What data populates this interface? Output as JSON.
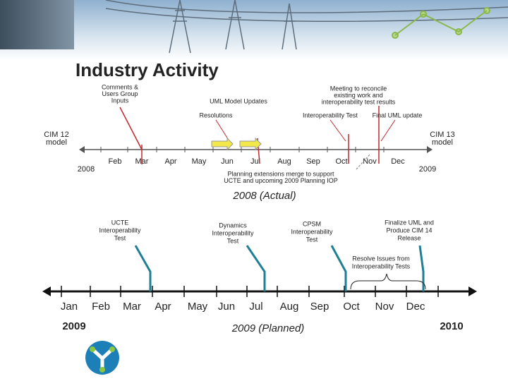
{
  "header": {
    "title": "Industry Activity"
  },
  "timeline_2008": {
    "caption": "2008 (Actual)",
    "start_year": "2008",
    "end_year": "2009",
    "start_model": [
      "CIM 12",
      "model"
    ],
    "end_model": [
      "CIM 13",
      "model"
    ],
    "months": [
      "Feb",
      "Mar",
      "Apr",
      "May",
      "Jun",
      "Jul",
      "Aug",
      "Sep",
      "Oct",
      "Nov",
      "Dec"
    ],
    "annotations": [
      {
        "lines": [
          "Comments &",
          "Users Group",
          "Inputs"
        ]
      },
      {
        "lines": [
          "UML Model Updates"
        ]
      },
      {
        "lines": [
          "Resolutions"
        ]
      },
      {
        "lines": [
          "Meeting to reconcile",
          "existing work and",
          "interoperability test results"
        ]
      },
      {
        "lines": [
          "Interoperability Test"
        ]
      },
      {
        "lines": [
          "Final UML update"
        ]
      },
      {
        "lines": [
          "Planning extensions merge to support",
          "UCTE and upcoming 2009 Planning IOP"
        ]
      }
    ]
  },
  "timeline_2009": {
    "caption": "2009 (Planned)",
    "start_year": "2009",
    "end_year": "2010",
    "months": [
      "Jan",
      "Feb",
      "Mar",
      "Apr",
      "May",
      "Jun",
      "Jul",
      "Aug",
      "Sep",
      "Oct",
      "Nov",
      "Dec"
    ],
    "milestones": [
      {
        "lines": [
          "UCTE",
          "Interoperability",
          "Test"
        ]
      },
      {
        "lines": [
          "Dynamics",
          "Interoperability",
          "Test"
        ]
      },
      {
        "lines": [
          "CPSM",
          "Interoperability",
          "Test"
        ]
      },
      {
        "lines": [
          "Finalize UML and",
          "Produce CIM 14",
          "Release"
        ]
      }
    ],
    "range_note": [
      "Resolve Issues from",
      "Interoperability Tests"
    ]
  }
}
